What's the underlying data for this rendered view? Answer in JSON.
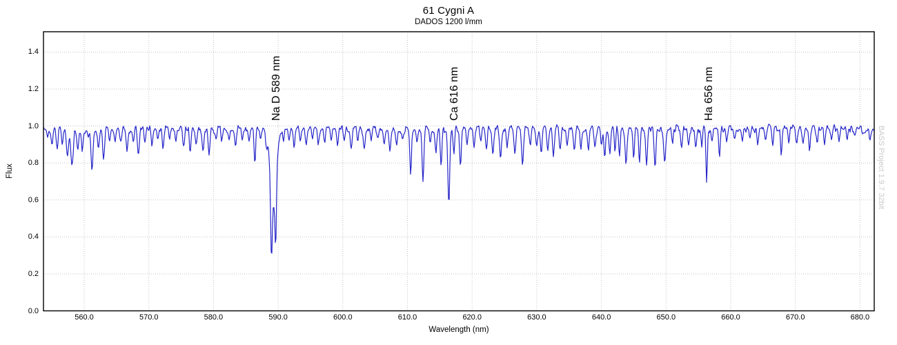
{
  "header": {
    "title": "61 Cygni A",
    "subtitle": "DADOS 1200 l/mm"
  },
  "watermark": "BASS Project 1.9.7 32bit",
  "chart_data": {
    "type": "line",
    "title": "61 Cygni A",
    "subtitle": "DADOS 1200 l/mm",
    "xlabel": "Wavelength (nm)",
    "ylabel": "Flux",
    "xlim": [
      553.7,
      682.2
    ],
    "ylim": [
      0,
      1.51
    ],
    "grid": true,
    "legend": "none",
    "x_ticks": {
      "values": [
        560,
        570,
        580,
        590,
        600,
        610,
        620,
        630,
        640,
        650,
        660,
        670,
        680
      ],
      "labels": [
        "560.0",
        "570.0",
        "580.0",
        "590.0",
        "600.0",
        "610.0",
        "620.0",
        "630.0",
        "640.0",
        "650.0",
        "660.0",
        "670.0",
        "680.0"
      ]
    },
    "y_ticks": {
      "values": [
        0,
        0.2,
        0.4,
        0.6,
        0.8,
        1.0,
        1.2,
        1.4
      ],
      "labels": [
        "0.0",
        "0.2",
        "0.4",
        "0.6",
        "0.8",
        "1.0",
        "1.2",
        "1.4"
      ]
    },
    "line_color": "#2323c8",
    "frame_color": "#000000",
    "grid_color": "#c4c4c4",
    "watermark_color": "#c9c9c9",
    "continuum_flux": 0.985,
    "noise": {
      "seed": 42,
      "amplitude": 0.02,
      "fine_amplitude": 0.007,
      "knot_step_nm": 0.22
    },
    "annotation_anchor_flux": 1.03,
    "annotations": [
      {
        "label": "Na D 589 nm",
        "x": 589.8
      },
      {
        "label": "Ca 616 nm",
        "x": 617.3
      },
      {
        "label": "Ha 656 nm",
        "x": 656.7
      }
    ],
    "absorption_lines": [
      [
        554.3,
        0.05,
        0.12
      ],
      [
        555.0,
        0.08,
        0.15
      ],
      [
        555.8,
        0.1,
        0.15
      ],
      [
        556.6,
        0.08,
        0.12
      ],
      [
        557.4,
        0.16,
        0.15
      ],
      [
        558.1,
        0.21,
        0.18
      ],
      [
        559.0,
        0.11,
        0.12
      ],
      [
        559.7,
        0.13,
        0.13
      ],
      [
        560.6,
        0.06,
        0.12
      ],
      [
        561.2,
        0.22,
        0.16
      ],
      [
        562.2,
        0.11,
        0.13
      ],
      [
        563.0,
        0.15,
        0.15
      ],
      [
        563.9,
        0.06,
        0.12
      ],
      [
        564.8,
        0.06,
        0.12
      ],
      [
        565.6,
        0.08,
        0.13
      ],
      [
        566.6,
        0.12,
        0.14
      ],
      [
        567.6,
        0.07,
        0.12
      ],
      [
        568.4,
        0.14,
        0.15
      ],
      [
        569.4,
        0.07,
        0.12
      ],
      [
        570.5,
        0.1,
        0.14
      ],
      [
        571.4,
        0.06,
        0.12
      ],
      [
        572.2,
        0.1,
        0.13
      ],
      [
        573.2,
        0.07,
        0.12
      ],
      [
        574.2,
        0.06,
        0.12
      ],
      [
        575.4,
        0.09,
        0.13
      ],
      [
        576.4,
        0.12,
        0.14
      ],
      [
        577.3,
        0.08,
        0.12
      ],
      [
        578.4,
        0.13,
        0.15
      ],
      [
        579.3,
        0.13,
        0.14
      ],
      [
        580.4,
        0.07,
        0.12
      ],
      [
        581.3,
        0.06,
        0.12
      ],
      [
        582.4,
        0.07,
        0.12
      ],
      [
        583.4,
        0.08,
        0.13
      ],
      [
        584.4,
        0.06,
        0.12
      ],
      [
        585.5,
        0.07,
        0.12
      ],
      [
        586.4,
        0.18,
        0.12
      ],
      [
        587.3,
        0.06,
        0.12
      ],
      [
        588.2,
        0.08,
        0.12
      ],
      [
        588.95,
        0.38,
        0.12
      ],
      [
        589.25,
        0.4,
        0.45
      ],
      [
        589.62,
        0.36,
        0.11
      ],
      [
        590.8,
        0.06,
        0.12
      ],
      [
        591.7,
        0.08,
        0.13
      ],
      [
        592.5,
        0.09,
        0.13
      ],
      [
        593.4,
        0.07,
        0.12
      ],
      [
        594.3,
        0.08,
        0.13
      ],
      [
        595.3,
        0.06,
        0.12
      ],
      [
        596.2,
        0.07,
        0.12
      ],
      [
        597.2,
        0.09,
        0.13
      ],
      [
        598.2,
        0.08,
        0.12
      ],
      [
        599.2,
        0.1,
        0.13
      ],
      [
        600.2,
        0.07,
        0.12
      ],
      [
        601.3,
        0.09,
        0.13
      ],
      [
        602.3,
        0.08,
        0.12
      ],
      [
        603.3,
        0.1,
        0.13
      ],
      [
        604.4,
        0.07,
        0.12
      ],
      [
        605.4,
        0.06,
        0.12
      ],
      [
        606.4,
        0.08,
        0.12
      ],
      [
        607.3,
        0.11,
        0.14
      ],
      [
        608.3,
        0.09,
        0.13
      ],
      [
        609.3,
        0.07,
        0.12
      ],
      [
        610.5,
        0.24,
        0.13
      ],
      [
        611.5,
        0.08,
        0.12
      ],
      [
        612.4,
        0.3,
        0.14
      ],
      [
        613.5,
        0.08,
        0.12
      ],
      [
        614.4,
        0.11,
        0.13
      ],
      [
        615.2,
        0.21,
        0.13
      ],
      [
        616.4,
        0.4,
        0.15
      ],
      [
        617.2,
        0.14,
        0.12
      ],
      [
        618.2,
        0.22,
        0.13
      ],
      [
        619.2,
        0.08,
        0.12
      ],
      [
        620.3,
        0.1,
        0.13
      ],
      [
        621.3,
        0.07,
        0.12
      ],
      [
        622.2,
        0.12,
        0.13
      ],
      [
        623.2,
        0.14,
        0.14
      ],
      [
        624.4,
        0.17,
        0.15
      ],
      [
        625.4,
        0.1,
        0.13
      ],
      [
        626.6,
        0.13,
        0.14
      ],
      [
        627.8,
        0.18,
        0.15
      ],
      [
        629.0,
        0.09,
        0.13
      ],
      [
        630.0,
        0.08,
        0.12
      ],
      [
        630.7,
        0.13,
        0.13
      ],
      [
        631.7,
        0.1,
        0.13
      ],
      [
        632.6,
        0.15,
        0.14
      ],
      [
        633.6,
        0.1,
        0.13
      ],
      [
        634.7,
        0.08,
        0.12
      ],
      [
        635.8,
        0.12,
        0.13
      ],
      [
        636.8,
        0.1,
        0.13
      ],
      [
        638.0,
        0.11,
        0.13
      ],
      [
        639.0,
        0.1,
        0.13
      ],
      [
        640.0,
        0.08,
        0.12
      ],
      [
        640.5,
        0.16,
        0.13
      ],
      [
        641.3,
        0.14,
        0.13
      ],
      [
        642.1,
        0.12,
        0.12
      ],
      [
        642.8,
        0.13,
        0.12
      ],
      [
        643.8,
        0.19,
        0.14
      ],
      [
        645.0,
        0.15,
        0.13
      ],
      [
        645.9,
        0.17,
        0.13
      ],
      [
        647.0,
        0.19,
        0.13
      ],
      [
        648.3,
        0.2,
        0.14
      ],
      [
        649.8,
        0.2,
        0.14
      ],
      [
        651.0,
        0.08,
        0.12
      ],
      [
        652.4,
        0.1,
        0.13
      ],
      [
        653.5,
        0.08,
        0.12
      ],
      [
        654.6,
        0.1,
        0.12
      ],
      [
        655.5,
        0.08,
        0.12
      ],
      [
        656.28,
        0.3,
        0.11
      ],
      [
        657.1,
        0.07,
        0.12
      ],
      [
        658.25,
        0.15,
        0.11
      ],
      [
        659.4,
        0.06,
        0.12
      ],
      [
        660.6,
        0.07,
        0.12
      ],
      [
        661.8,
        0.06,
        0.12
      ],
      [
        663.0,
        0.07,
        0.12
      ],
      [
        664.2,
        0.07,
        0.12
      ],
      [
        665.4,
        0.08,
        0.12
      ],
      [
        666.5,
        0.1,
        0.13
      ],
      [
        667.8,
        0.14,
        0.11
      ],
      [
        669.0,
        0.07,
        0.12
      ],
      [
        670.2,
        0.07,
        0.12
      ],
      [
        671.2,
        0.06,
        0.12
      ],
      [
        672.2,
        0.14,
        0.11
      ],
      [
        673.4,
        0.08,
        0.12
      ],
      [
        674.5,
        0.08,
        0.12
      ],
      [
        675.6,
        0.06,
        0.12
      ],
      [
        676.8,
        0.06,
        0.12
      ],
      [
        678.0,
        0.06,
        0.12
      ],
      [
        679.2,
        0.05,
        0.12
      ],
      [
        680.4,
        0.04,
        0.12
      ],
      [
        681.5,
        0.05,
        0.12
      ]
    ]
  }
}
